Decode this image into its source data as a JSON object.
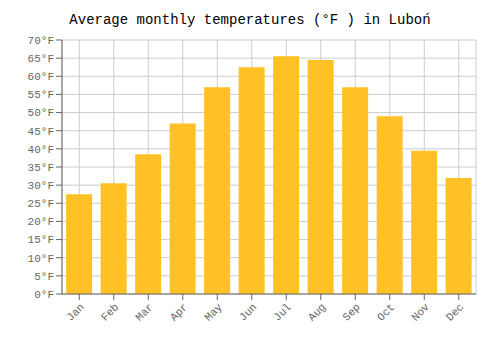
{
  "chart_data": {
    "type": "bar",
    "title": "Average monthly temperatures (°F ) in Luboń",
    "categories": [
      "Jan",
      "Feb",
      "Mar",
      "Apr",
      "May",
      "Jun",
      "Jul",
      "Aug",
      "Sep",
      "Oct",
      "Nov",
      "Dec"
    ],
    "values": [
      27.5,
      30.5,
      38.5,
      47.0,
      57.0,
      62.5,
      65.5,
      64.5,
      57.0,
      49.0,
      39.5,
      32.0
    ],
    "color": "#FFC125",
    "ylim": [
      0,
      70
    ],
    "yticks": [
      {
        "value": 0,
        "label": "0°F"
      },
      {
        "value": 5,
        "label": "5°F"
      },
      {
        "value": 10,
        "label": "10°F"
      },
      {
        "value": 15,
        "label": "15°F"
      },
      {
        "value": 20,
        "label": "20°F"
      },
      {
        "value": 25,
        "label": "25°F"
      },
      {
        "value": 30,
        "label": "30°F"
      },
      {
        "value": 35,
        "label": "35°F"
      },
      {
        "value": 40,
        "label": "40°F"
      },
      {
        "value": 45,
        "label": "45°F"
      },
      {
        "value": 50,
        "label": "50°F"
      },
      {
        "value": 55,
        "label": "55°F"
      },
      {
        "value": 60,
        "label": "60°F"
      },
      {
        "value": 65,
        "label": "65°F"
      },
      {
        "value": 70,
        "label": "70°F"
      }
    ],
    "grid": true
  }
}
